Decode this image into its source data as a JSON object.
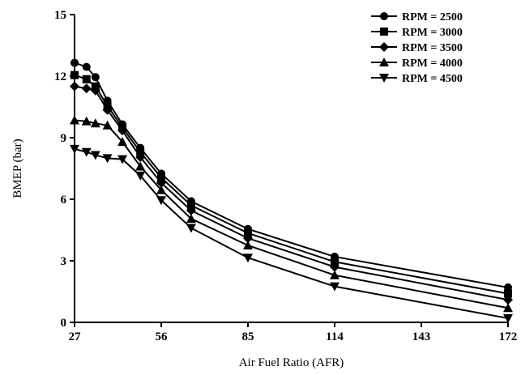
{
  "chart_data": {
    "type": "line",
    "title": "",
    "xlabel": "Air Fuel Ratio (AFR)",
    "ylabel": "BMEP (bar)",
    "xlim": [
      27,
      172
    ],
    "ylim": [
      0,
      15
    ],
    "xticks": [
      27,
      56,
      85,
      114,
      143,
      172
    ],
    "yticks": [
      0,
      3,
      6,
      9,
      12,
      15
    ],
    "grid": false,
    "legend_position": "top-right",
    "series": [
      {
        "name": "RPM = 2500",
        "marker": "circle",
        "x": [
          27,
          31,
          34,
          38,
          43,
          49,
          56,
          66,
          85,
          114,
          172
        ],
        "y": [
          12.65,
          12.45,
          11.95,
          10.8,
          9.65,
          8.5,
          7.25,
          5.9,
          4.55,
          3.2,
          1.7
        ]
      },
      {
        "name": "RPM = 3000",
        "marker": "square",
        "x": [
          27,
          31,
          34,
          38,
          43,
          49,
          56,
          66,
          85,
          114,
          172
        ],
        "y": [
          12.05,
          11.85,
          11.5,
          10.55,
          9.5,
          8.3,
          7.05,
          5.7,
          4.35,
          2.95,
          1.4
        ]
      },
      {
        "name": "RPM = 3500",
        "marker": "diamond",
        "x": [
          27,
          31,
          34,
          38,
          43,
          49,
          56,
          66,
          85,
          114,
          172
        ],
        "y": [
          11.5,
          11.4,
          11.3,
          10.35,
          9.35,
          8.05,
          6.8,
          5.45,
          4.1,
          2.7,
          1.1
        ]
      },
      {
        "name": "RPM = 4000",
        "marker": "triangle-up",
        "x": [
          27,
          31,
          34,
          38,
          43,
          49,
          56,
          66,
          85,
          114,
          172
        ],
        "y": [
          9.85,
          9.8,
          9.7,
          9.6,
          8.8,
          7.6,
          6.45,
          5.05,
          3.75,
          2.3,
          0.7
        ]
      },
      {
        "name": "RPM = 4500",
        "marker": "triangle-down",
        "x": [
          27,
          31,
          34,
          38,
          43,
          49,
          56,
          66,
          85,
          114,
          172
        ],
        "y": [
          8.45,
          8.3,
          8.15,
          8.0,
          7.95,
          7.15,
          5.95,
          4.6,
          3.15,
          1.75,
          0.2
        ]
      }
    ]
  }
}
